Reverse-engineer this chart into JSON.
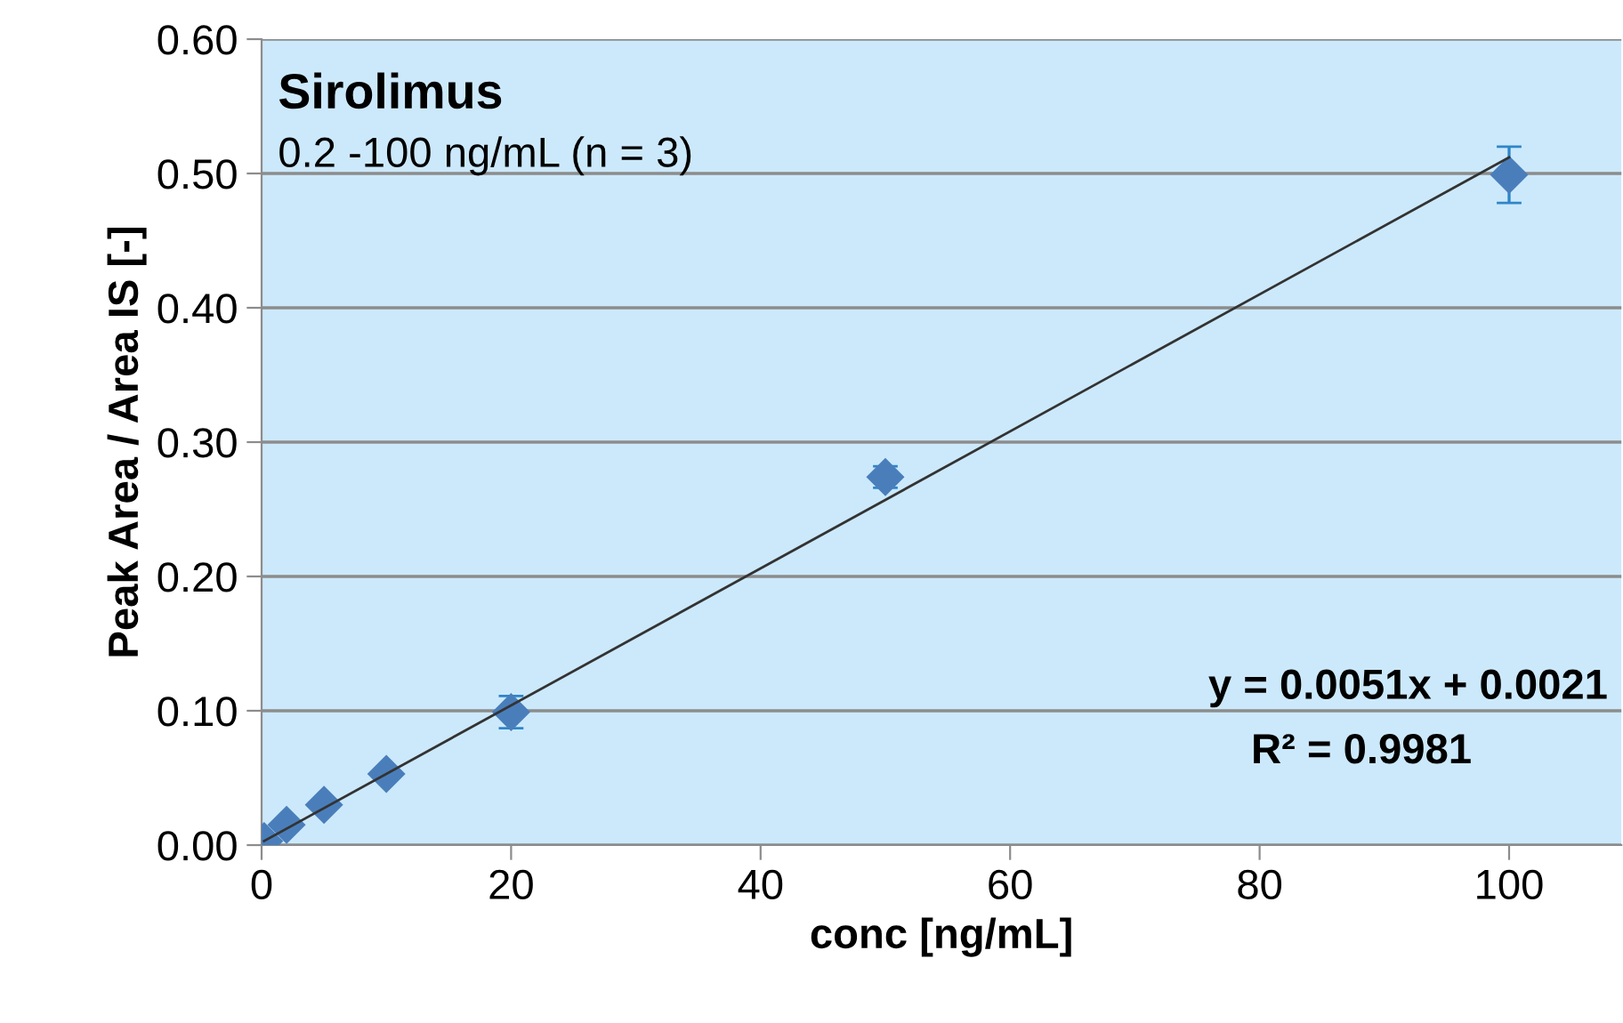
{
  "chart_data": {
    "type": "scatter",
    "xlabel": "conc [ng/mL]",
    "ylabel": "Peak Area / Area IS [-]",
    "annotations": [
      "Sirolimus",
      "0.2 -100 ng/mL (n = 3)",
      "y = 0.0051x + 0.0021",
      "R² = 0.9981"
    ],
    "series": [
      {
        "color": "#4a7ebb",
        "marker": "diamond",
        "x": [
          0.2,
          0.5,
          1,
          2,
          5,
          10,
          20,
          50,
          100
        ],
        "values": [
          0.003,
          null,
          null,
          0.015,
          0.03,
          0.053,
          0.099,
          0.274,
          0.499
        ],
        "errors": [
          null,
          null,
          null,
          null,
          null,
          0.003,
          0.012,
          0.008,
          0.021
        ]
      },
      {
        "type": "line",
        "color": "#333333",
        "marker": "none",
        "x": [
          0.2,
          100
        ],
        "values": [
          0.003,
          0.512
        ]
      }
    ],
    "xlim": [
      0,
      109
    ],
    "xticks": [
      0,
      20,
      40,
      60,
      80,
      100
    ],
    "ylim": [
      0,
      0.6
    ],
    "yticks": [
      {
        "value": 0,
        "label": "0.00"
      },
      {
        "value": 0.1,
        "label": "0.10"
      },
      {
        "value": 0.2,
        "label": "0.20"
      },
      {
        "value": 0.3,
        "label": "0.30"
      },
      {
        "value": 0.4,
        "label": "0.40"
      },
      {
        "value": 0.5,
        "label": "0.50"
      },
      {
        "value": 0.6,
        "label": "0.60"
      }
    ],
    "grid": "y",
    "legend": false
  }
}
